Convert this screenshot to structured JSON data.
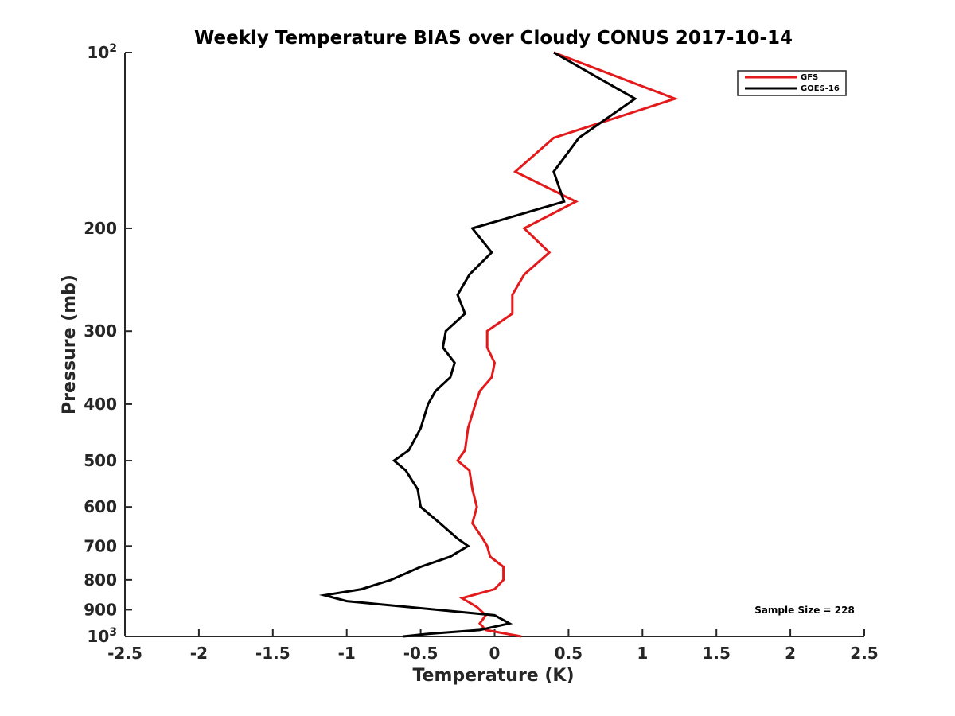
{
  "chart_data": {
    "type": "line",
    "title": "Weekly Temperature BIAS over Cloudy CONUS 2017-10-14",
    "xlabel": "Temperature (K)",
    "ylabel": "Pressure (mb)",
    "xlim": [
      -2.5,
      2.5
    ],
    "ylim": [
      1000,
      100
    ],
    "yscale": "log",
    "y_reversed": true,
    "grid": false,
    "legend_position": "top-right",
    "x_ticks": [
      "-2.5",
      "-2",
      "-1.5",
      "-1",
      "-0.5",
      "0",
      "0.5",
      "1",
      "1.5",
      "2",
      "2.5"
    ],
    "y_ticks": [
      {
        "value": 100,
        "label": "10",
        "sup": "2"
      },
      {
        "value": 200,
        "label": "200",
        "sup": ""
      },
      {
        "value": 300,
        "label": "300",
        "sup": ""
      },
      {
        "value": 400,
        "label": "400",
        "sup": ""
      },
      {
        "value": 500,
        "label": "500",
        "sup": ""
      },
      {
        "value": 600,
        "label": "600",
        "sup": ""
      },
      {
        "value": 700,
        "label": "700",
        "sup": ""
      },
      {
        "value": 800,
        "label": "800",
        "sup": ""
      },
      {
        "value": 900,
        "label": "900",
        "sup": ""
      },
      {
        "value": 1000,
        "label": "10",
        "sup": "3"
      }
    ],
    "series": [
      {
        "name": "GFS",
        "color": "#e31a1c",
        "points": [
          [
            0.4,
            100
          ],
          [
            1.22,
            120
          ],
          [
            0.4,
            140
          ],
          [
            0.14,
            160
          ],
          [
            0.55,
            180
          ],
          [
            0.2,
            200
          ],
          [
            0.37,
            220
          ],
          [
            0.2,
            240
          ],
          [
            0.12,
            260
          ],
          [
            0.12,
            280
          ],
          [
            -0.05,
            300
          ],
          [
            -0.05,
            320
          ],
          [
            0.0,
            340
          ],
          [
            -0.02,
            360
          ],
          [
            -0.1,
            380
          ],
          [
            -0.13,
            400
          ],
          [
            -0.18,
            440
          ],
          [
            -0.2,
            480
          ],
          [
            -0.25,
            500
          ],
          [
            -0.17,
            520
          ],
          [
            -0.15,
            560
          ],
          [
            -0.12,
            600
          ],
          [
            -0.15,
            640
          ],
          [
            -0.08,
            680
          ],
          [
            -0.05,
            700
          ],
          [
            -0.03,
            730
          ],
          [
            0.06,
            760
          ],
          [
            0.06,
            800
          ],
          [
            0.0,
            830
          ],
          [
            -0.22,
            860
          ],
          [
            -0.12,
            890
          ],
          [
            -0.06,
            920
          ],
          [
            -0.1,
            950
          ],
          [
            -0.06,
            975
          ],
          [
            0.18,
            1000
          ]
        ]
      },
      {
        "name": "GOES-16",
        "color": "#000000",
        "points": [
          [
            0.4,
            100
          ],
          [
            0.95,
            120
          ],
          [
            0.57,
            140
          ],
          [
            0.4,
            160
          ],
          [
            0.47,
            180
          ],
          [
            -0.15,
            200
          ],
          [
            -0.02,
            220
          ],
          [
            -0.17,
            240
          ],
          [
            -0.25,
            260
          ],
          [
            -0.2,
            280
          ],
          [
            -0.33,
            300
          ],
          [
            -0.35,
            320
          ],
          [
            -0.27,
            340
          ],
          [
            -0.3,
            360
          ],
          [
            -0.4,
            380
          ],
          [
            -0.45,
            400
          ],
          [
            -0.5,
            440
          ],
          [
            -0.58,
            480
          ],
          [
            -0.68,
            500
          ],
          [
            -0.6,
            520
          ],
          [
            -0.52,
            560
          ],
          [
            -0.5,
            600
          ],
          [
            -0.37,
            640
          ],
          [
            -0.25,
            680
          ],
          [
            -0.18,
            700
          ],
          [
            -0.3,
            730
          ],
          [
            -0.5,
            760
          ],
          [
            -0.7,
            800
          ],
          [
            -0.9,
            830
          ],
          [
            -1.15,
            850
          ],
          [
            -1.0,
            870
          ],
          [
            0.0,
            920
          ],
          [
            0.1,
            950
          ],
          [
            -0.1,
            975
          ],
          [
            -0.45,
            990
          ],
          [
            -0.62,
            1000
          ]
        ]
      }
    ],
    "annotation": "Sample Size = 228"
  }
}
